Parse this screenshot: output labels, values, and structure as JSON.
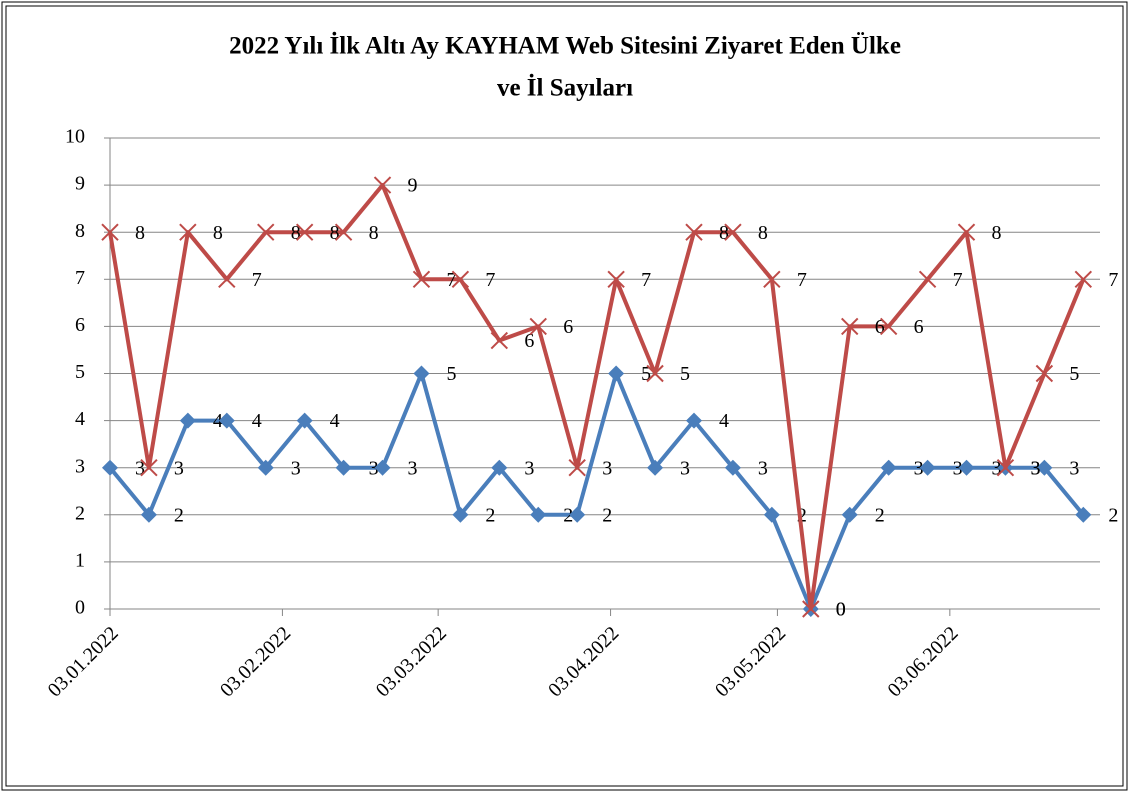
{
  "chart_data": {
    "type": "line",
    "title": [
      "2022 Yılı İlk Altı Ay KAYHAM Web Sitesini Ziyaret Eden Ülke",
      "ve İl Sayıları"
    ],
    "x": [
      "2022-01-03",
      "2022-01-10",
      "2022-01-17",
      "2022-01-24",
      "2022-01-31",
      "2022-02-07",
      "2022-02-14",
      "2022-02-21",
      "2022-02-28",
      "2022-03-07",
      "2022-03-14",
      "2022-03-21",
      "2022-03-28",
      "2022-04-04",
      "2022-04-11",
      "2022-04-18",
      "2022-04-25",
      "2022-05-02",
      "2022-05-09",
      "2022-05-16",
      "2022-05-23",
      "2022-05-30",
      "2022-06-06",
      "2022-06-13",
      "2022-06-20",
      "2022-06-27"
    ],
    "series": [
      {
        "color": "#4a7ebb",
        "marker": "diamond",
        "values": [
          3,
          2,
          4,
          4,
          3,
          4,
          3,
          3,
          5,
          2,
          3,
          2,
          2,
          5,
          3,
          4,
          3,
          2,
          0,
          2,
          3,
          3,
          3,
          3,
          3,
          2
        ]
      },
      {
        "color": "#be4b48",
        "marker": "x",
        "values": [
          8,
          3,
          8,
          7,
          8,
          8,
          8,
          9,
          7,
          7,
          5.7,
          6,
          3,
          7,
          5,
          8,
          8,
          7,
          0,
          6,
          6,
          7,
          8,
          3,
          5,
          7
        ],
        "value_labels": [
          "8",
          "3",
          "8",
          "7",
          "8",
          "8",
          "8",
          "9",
          "7",
          "7",
          "6",
          "6",
          "3",
          "7",
          "5",
          "8",
          "8",
          "7",
          "0",
          "6",
          "6",
          "7",
          "8",
          "3",
          "5",
          "7"
        ]
      }
    ],
    "xlim": [
      "2022-01-03",
      "2022-06-30"
    ],
    "xticks": [
      {
        "value": "2022-01-03",
        "label": "03.01.2022"
      },
      {
        "value": "2022-02-03",
        "label": "03.02.2022"
      },
      {
        "value": "2022-03-03",
        "label": "03.03.2022"
      },
      {
        "value": "2022-04-03",
        "label": "03.04.2022"
      },
      {
        "value": "2022-05-03",
        "label": "03.05.2022"
      },
      {
        "value": "2022-06-03",
        "label": "03.06.2022"
      }
    ],
    "ylim": [
      0,
      10
    ],
    "yticks": [
      0,
      1,
      2,
      3,
      4,
      5,
      6,
      7,
      8,
      9,
      10
    ],
    "grid": true
  }
}
